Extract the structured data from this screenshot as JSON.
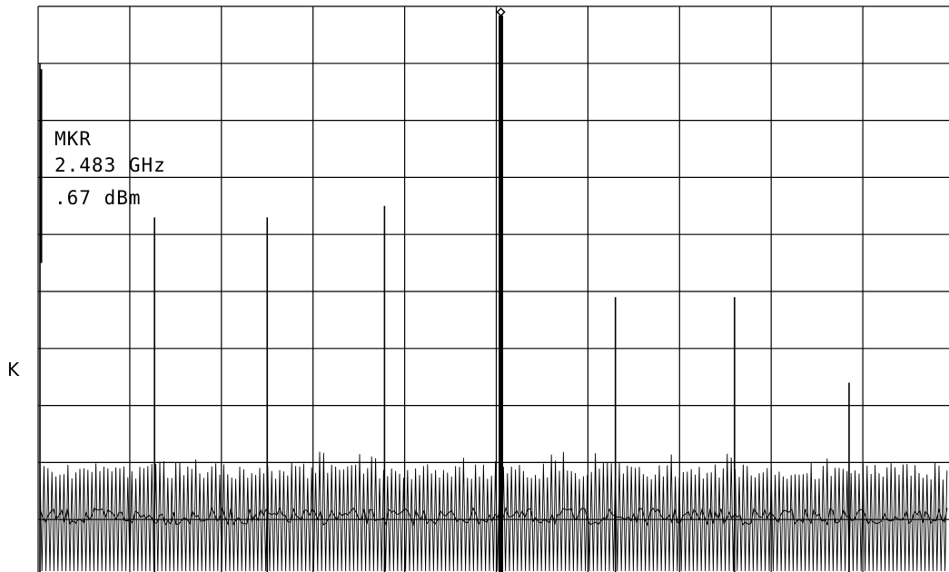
{
  "chart_data": {
    "type": "line",
    "title": "",
    "xlabel": "",
    "ylabel": "",
    "grid": true,
    "divisions": {
      "x": 10,
      "y": 10
    },
    "ylim": [
      -100,
      0
    ],
    "marker": {
      "label": "MKR",
      "frequency": "2.483 GHz",
      "amplitude": ".67 dBm",
      "x_div": 5.05,
      "level_db": -1
    },
    "side_label": "K",
    "noise_floor_db": [
      -80,
      -95
    ],
    "series": [
      {
        "spurs": [
          {
            "x_div": 0.02,
            "level_db": -10
          },
          {
            "x_div": 1.27,
            "level_db": -37
          },
          {
            "x_div": 2.5,
            "level_db": -37
          },
          {
            "x_div": 3.78,
            "level_db": -35
          },
          {
            "x_div": 6.3,
            "level_db": -51
          },
          {
            "x_div": 7.6,
            "level_db": -51
          },
          {
            "x_div": 8.85,
            "level_db": -66
          }
        ]
      }
    ]
  },
  "colors": {
    "trace": "#000000",
    "grid": "#000000",
    "background": "#ffffff"
  }
}
